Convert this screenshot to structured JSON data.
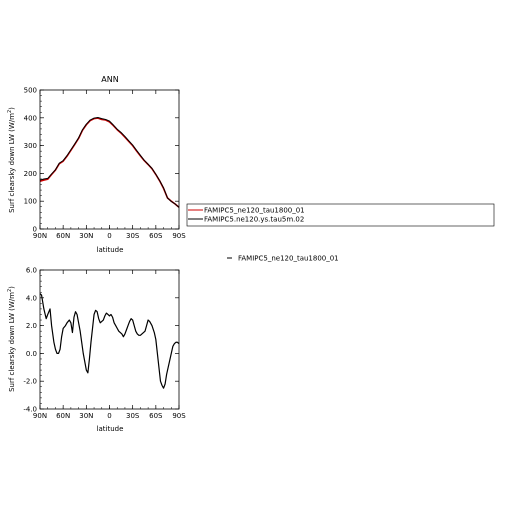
{
  "colors": {
    "ctrl": "#cc0000",
    "test": "#000000",
    "diff": "#000000"
  },
  "chart_data": [
    {
      "type": "line",
      "title": "ANN",
      "xlabel": "latitude",
      "ylabel": "Surf clearsky down LW (W/m",
      "ylabel_sup": "2",
      "ylabel_end": ")",
      "xlim": [
        90,
        -90
      ],
      "ylim": [
        0,
        500
      ],
      "x_ticks": [
        90,
        60,
        30,
        0,
        -30,
        -60,
        -90
      ],
      "x_tick_labels": [
        "90N",
        "60N",
        "30N",
        "0",
        "30S",
        "60S",
        "90S"
      ],
      "y_ticks": [
        0,
        100,
        200,
        300,
        400,
        500
      ],
      "y_tick_labels": [
        "0",
        "100",
        "200",
        "300",
        "400",
        "500"
      ],
      "legend": {
        "placement": "right",
        "entries": [
          "FAMIPC5_ne120_tau1800_01",
          "FAMIPC5.ne120.ys.tau5m.02"
        ]
      },
      "series": [
        {
          "name": "FAMIPC5_ne120_tau1800_01",
          "x": [
            90,
            85,
            80,
            75,
            70,
            65,
            60,
            55,
            50,
            45,
            40,
            35,
            30,
            25,
            20,
            15,
            10,
            5,
            0,
            -5,
            -10,
            -15,
            -20,
            -25,
            -30,
            -35,
            -40,
            -45,
            -50,
            -55,
            -60,
            -65,
            -70,
            -75,
            -80,
            -85,
            -90
          ],
          "y": [
            172,
            176,
            179,
            196,
            212,
            235,
            244,
            262,
            283,
            304,
            326,
            355,
            375,
            390,
            397,
            399,
            394,
            392,
            385,
            372,
            357,
            345,
            330,
            315,
            300,
            281,
            263,
            246,
            232,
            217,
            196,
            173,
            146,
            112,
            100,
            90,
            78
          ]
        },
        {
          "name": "FAMIPC5.ne120.ys.tau5m.02",
          "x": [
            90,
            85,
            80,
            75,
            70,
            65,
            60,
            55,
            50,
            45,
            40,
            35,
            30,
            25,
            20,
            15,
            10,
            5,
            0,
            -5,
            -10,
            -15,
            -20,
            -25,
            -30,
            -35,
            -40,
            -45,
            -50,
            -55,
            -60,
            -65,
            -70,
            -75,
            -80,
            -85,
            -90
          ],
          "y": [
            176,
            180,
            182,
            198,
            213,
            237,
            246,
            264,
            285,
            306,
            328,
            357,
            377,
            392,
            399,
            401,
            397,
            394,
            388,
            374,
            359,
            347,
            333,
            317,
            302,
            283,
            265,
            247,
            233,
            218,
            197,
            174,
            148,
            112,
            99,
            90,
            78
          ]
        }
      ]
    },
    {
      "type": "line",
      "title": "",
      "xlabel": "latitude",
      "ylabel": "Surf clearsky down LW (W/m",
      "ylabel_sup": "2",
      "ylabel_end": ")",
      "xlim": [
        90,
        -90
      ],
      "ylim": [
        -4,
        6
      ],
      "x_ticks": [
        90,
        60,
        30,
        0,
        -30,
        -60,
        -90
      ],
      "x_tick_labels": [
        "90N",
        "60N",
        "30N",
        "0",
        "30S",
        "60S",
        "90S"
      ],
      "y_ticks": [
        -4,
        -2,
        0,
        2,
        4,
        6
      ],
      "y_tick_labels": [
        "-4.0",
        "-2.0",
        "0.0",
        "2.0",
        "4.0",
        "6.0"
      ],
      "legend": {
        "placement": "right",
        "entries": [
          "FAMIPC5_ne120_tau1800_01"
        ]
      },
      "series": [
        {
          "name": "FAMIPC5_ne120_tau1800_01",
          "x": [
            90,
            88,
            85,
            82,
            80,
            77,
            75,
            72,
            70,
            68,
            66,
            64,
            62,
            60,
            57,
            55,
            52,
            50,
            48,
            46,
            44,
            42,
            40,
            38,
            36,
            34,
            32,
            30,
            28,
            26,
            24,
            22,
            20,
            18,
            16,
            14,
            12,
            10,
            8,
            6,
            4,
            2,
            0,
            -2,
            -4,
            -6,
            -8,
            -10,
            -12,
            -14,
            -16,
            -18,
            -20,
            -22,
            -24,
            -26,
            -28,
            -30,
            -32,
            -34,
            -36,
            -38,
            -40,
            -42,
            -44,
            -46,
            -48,
            -50,
            -52,
            -55,
            -58,
            -60,
            -62,
            -64,
            -66,
            -68,
            -70,
            -72,
            -74,
            -76,
            -78,
            -80,
            -82,
            -84,
            -86,
            -88,
            -90
          ],
          "y": [
            4.3,
            4.2,
            3.2,
            2.5,
            2.8,
            3.2,
            2.0,
            0.8,
            0.3,
            0.0,
            0.0,
            0.3,
            1.2,
            1.8,
            2.0,
            2.2,
            2.4,
            2.2,
            1.5,
            2.6,
            3.0,
            2.8,
            2.2,
            1.6,
            0.8,
            0.0,
            -0.6,
            -1.2,
            -1.4,
            -0.4,
            0.8,
            1.8,
            2.8,
            3.1,
            3.0,
            2.5,
            2.2,
            2.3,
            2.4,
            2.7,
            2.9,
            2.8,
            2.7,
            2.8,
            2.6,
            2.2,
            2.0,
            1.8,
            1.6,
            1.5,
            1.4,
            1.2,
            1.4,
            1.7,
            2.0,
            2.3,
            2.5,
            2.4,
            2.0,
            1.6,
            1.4,
            1.3,
            1.3,
            1.4,
            1.5,
            1.6,
            2.0,
            2.4,
            2.3,
            2.0,
            1.5,
            1.0,
            0.0,
            -1.0,
            -2.0,
            -2.3,
            -2.5,
            -2.2,
            -1.5,
            -1.0,
            -0.5,
            0.0,
            0.5,
            0.7,
            0.8,
            0.8,
            0.7
          ]
        }
      ]
    }
  ]
}
